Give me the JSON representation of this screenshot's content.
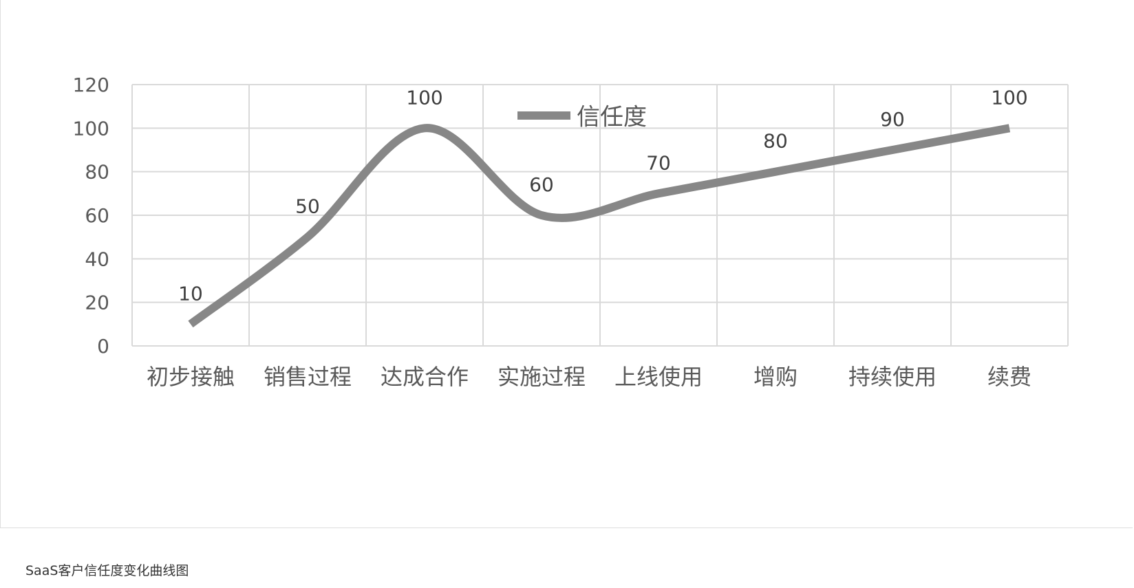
{
  "caption": "SaaS客户信任度变化曲线图",
  "chart_data": {
    "type": "line",
    "title": "",
    "xlabel": "",
    "ylabel": "",
    "categories": [
      "初步接触",
      "销售过程",
      "达成合作",
      "实施过程",
      "上线使用",
      "增购",
      "持续使用",
      "续费"
    ],
    "series": [
      {
        "name": "信任度",
        "values": [
          10,
          50,
          100,
          60,
          70,
          80,
          90,
          100
        ],
        "color": "#878787",
        "smooth": true
      }
    ],
    "data_labels": [
      "10",
      "50",
      "100",
      "60",
      "70",
      "80",
      "90",
      "100"
    ],
    "y_ticks": [
      "0",
      "20",
      "40",
      "60",
      "80",
      "100",
      "120"
    ],
    "ylim": [
      0,
      120
    ],
    "grid": true,
    "legend_position": "top-center",
    "colors": {
      "grid": "#d9d9d9",
      "text": "#595959"
    }
  }
}
